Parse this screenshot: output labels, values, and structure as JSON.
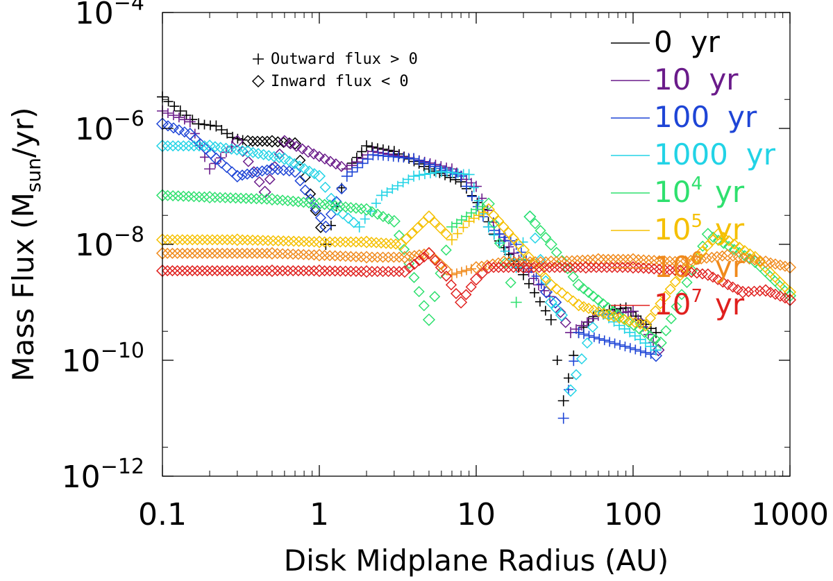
{
  "chart_data": {
    "type": "scatter",
    "xlabel": "Disk Midplane Radius (AU)",
    "ylabel": {
      "main": "Mass Flux (M",
      "sub": "sun",
      "tail": "/yr)"
    },
    "xscale": "log",
    "yscale": "log",
    "xlim": [
      0.1,
      1000
    ],
    "ylim": [
      1e-12,
      0.0001
    ],
    "x_ticks": [
      {
        "value": 0.1,
        "label": "0.1"
      },
      {
        "value": 1,
        "label": "1"
      },
      {
        "value": 10,
        "label": "10"
      },
      {
        "value": 100,
        "label": "100"
      },
      {
        "value": 1000,
        "label": "1000"
      }
    ],
    "y_ticks": [
      {
        "value": 1e-12,
        "base": "10",
        "exp": "−12"
      },
      {
        "value": 1e-10,
        "base": "10",
        "exp": "−10"
      },
      {
        "value": 1e-08,
        "base": "10",
        "exp": "−8"
      },
      {
        "value": 1e-06,
        "base": "10",
        "exp": "−6"
      },
      {
        "value": 0.0001,
        "base": "10",
        "exp": "−4"
      }
    ],
    "grid": false,
    "legend_position": "top-right",
    "marker_key": [
      {
        "marker": "plus",
        "text": "Outward flux > 0"
      },
      {
        "marker": "diamond",
        "text": "Inward flux < 0"
      }
    ],
    "series": [
      {
        "name": "0 yr",
        "label": {
          "base": "0",
          "exp": "",
          "unit": "yr"
        },
        "color": "#000000",
        "points": [
          [
            0.1,
            3.5e-06,
            "p"
          ],
          [
            0.13,
            2e-06,
            "p"
          ],
          [
            0.17,
            1.2e-06,
            "p"
          ],
          [
            0.22,
            1.1e-06,
            "p"
          ],
          [
            0.28,
            7e-07,
            "p"
          ],
          [
            0.35,
            6e-07,
            "d"
          ],
          [
            0.5,
            6e-07,
            "d"
          ],
          [
            0.7,
            5.5e-07,
            "d"
          ],
          [
            1.1,
            1e-08,
            "p"
          ],
          [
            1.5,
            2e-07,
            "p"
          ],
          [
            2,
            5e-07,
            "p"
          ],
          [
            3,
            4e-07,
            "p"
          ],
          [
            5,
            2e-07,
            "p"
          ],
          [
            8,
            1.2e-07,
            "p"
          ],
          [
            11,
            4e-08,
            "p"
          ],
          [
            13,
            1.5e-08,
            "p"
          ],
          [
            20,
            3e-09,
            "p"
          ],
          [
            30,
            5e-10,
            "p"
          ],
          [
            36,
            2e-11,
            "p"
          ],
          [
            45,
            3e-10,
            "p"
          ],
          [
            60,
            7e-10,
            "p"
          ],
          [
            90,
            8e-10,
            "p"
          ],
          [
            140,
            3e-10,
            "p"
          ]
        ]
      },
      {
        "name": "10 yr",
        "label": {
          "base": "10",
          "exp": "",
          "unit": "yr"
        },
        "color": "#6a1b8a",
        "points": [
          [
            0.1,
            2e-06,
            "p"
          ],
          [
            0.15,
            1.3e-06,
            "p"
          ],
          [
            0.2,
            2e-07,
            "p"
          ],
          [
            0.3,
            6e-07,
            "d"
          ],
          [
            0.45,
            8e-08,
            "d"
          ],
          [
            0.6,
            6e-07,
            "d"
          ],
          [
            0.85,
            4e-07,
            "d"
          ],
          [
            1.5,
            2e-07,
            "p"
          ],
          [
            2.2,
            4e-07,
            "p"
          ],
          [
            4,
            3e-07,
            "p"
          ],
          [
            7,
            2e-07,
            "p"
          ],
          [
            10,
            1e-07,
            "p"
          ],
          [
            14,
            1.5e-08,
            "p"
          ],
          [
            25,
            2e-09,
            "p"
          ],
          [
            32,
            1e-09,
            "d"
          ],
          [
            40,
            3e-10,
            "p"
          ],
          [
            60,
            6e-10,
            "p"
          ],
          [
            100,
            7e-10,
            "p"
          ],
          [
            145,
            1.5e-10,
            "d"
          ]
        ]
      },
      {
        "name": "100 yr",
        "label": {
          "base": "100",
          "exp": "",
          "unit": "yr"
        },
        "color": "#1e45d6",
        "points": [
          [
            0.1,
            1.2e-06,
            "d"
          ],
          [
            0.15,
            8e-07,
            "d"
          ],
          [
            0.22,
            3e-07,
            "d"
          ],
          [
            0.3,
            1.5e-07,
            "d"
          ],
          [
            0.5,
            2e-07,
            "d"
          ],
          [
            0.7,
            1.8e-07,
            "d"
          ],
          [
            1.1,
            2e-08,
            "d"
          ],
          [
            1.5,
            1.5e-07,
            "p"
          ],
          [
            2.2,
            3.5e-07,
            "p"
          ],
          [
            4,
            3e-07,
            "p"
          ],
          [
            8,
            1.5e-07,
            "p"
          ],
          [
            12,
            2e-08,
            "p"
          ],
          [
            18,
            1e-08,
            "p"
          ],
          [
            28,
            1.5e-09,
            "d"
          ],
          [
            32,
            1e-09,
            "d"
          ],
          [
            36,
            1e-11,
            "p"
          ],
          [
            45,
            3e-10,
            "p"
          ],
          [
            140,
            1.2e-10,
            "d"
          ]
        ]
      },
      {
        "name": "1000 yr",
        "label": {
          "base": "1000",
          "exp": "",
          "unit": "yr"
        },
        "color": "#22d3e6",
        "points": [
          [
            0.1,
            5e-07,
            "d"
          ],
          [
            0.2,
            5e-07,
            "d"
          ],
          [
            0.35,
            4e-07,
            "d"
          ],
          [
            0.6,
            3e-07,
            "d"
          ],
          [
            1,
            1.5e-07,
            "d"
          ],
          [
            1.3,
            4e-08,
            "d"
          ],
          [
            1.8,
            2e-08,
            "p"
          ],
          [
            2.5,
            7e-08,
            "p"
          ],
          [
            4,
            1.5e-07,
            "p"
          ],
          [
            6,
            1.8e-07,
            "p"
          ],
          [
            9,
            1.6e-07,
            "p"
          ],
          [
            12,
            2e-08,
            "p"
          ],
          [
            18,
            4e-09,
            "p"
          ],
          [
            22,
            3e-08,
            "d"
          ],
          [
            30,
            1e-09,
            "d"
          ],
          [
            35,
            6e-10,
            "d"
          ],
          [
            40,
            3e-11,
            "d"
          ],
          [
            60,
            7e-10,
            "p"
          ],
          [
            140,
            1.5e-10,
            "p"
          ]
        ]
      },
      {
        "name": "10⁴ yr",
        "label": {
          "base": "10",
          "exp": "4",
          "unit": "yr"
        },
        "color": "#2ee06e",
        "points": [
          [
            0.1,
            7e-08,
            "d"
          ],
          [
            0.2,
            6.5e-08,
            "d"
          ],
          [
            0.5,
            6e-08,
            "d"
          ],
          [
            1,
            5e-08,
            "d"
          ],
          [
            2,
            4e-08,
            "d"
          ],
          [
            3,
            2.5e-08,
            "d"
          ],
          [
            5,
            5e-10,
            "d"
          ],
          [
            7,
            2e-08,
            "p"
          ],
          [
            10,
            4e-08,
            "p"
          ],
          [
            12,
            5e-08,
            "d"
          ],
          [
            18,
            1e-09,
            "p"
          ],
          [
            22,
            3e-08,
            "d"
          ],
          [
            30,
            1e-08,
            "d"
          ],
          [
            45,
            2e-09,
            "d"
          ],
          [
            80,
            6e-10,
            "d"
          ],
          [
            150,
            2e-10,
            "d"
          ],
          [
            300,
            1.5e-08,
            "d"
          ],
          [
            600,
            5e-09,
            "d"
          ],
          [
            1000,
            1.3e-09,
            "d"
          ]
        ]
      },
      {
        "name": "10⁵ yr",
        "label": {
          "base": "10",
          "exp": "5",
          "unit": "yr"
        },
        "color": "#f5c000",
        "points": [
          [
            0.1,
            1.2e-08,
            "d"
          ],
          [
            0.3,
            1.2e-08,
            "d"
          ],
          [
            1,
            1.1e-08,
            "d"
          ],
          [
            2,
            1.1e-08,
            "d"
          ],
          [
            3.3,
            1e-08,
            "d"
          ],
          [
            5,
            3e-08,
            "d"
          ],
          [
            7,
            1.2e-08,
            "p"
          ],
          [
            9,
            2.5e-08,
            "p"
          ],
          [
            12,
            4e-08,
            "d"
          ],
          [
            20,
            8e-09,
            "d"
          ],
          [
            30,
            2e-09,
            "d"
          ],
          [
            45,
            9e-10,
            "d"
          ],
          [
            70,
            6e-10,
            "d"
          ],
          [
            120,
            4e-10,
            "d"
          ],
          [
            200,
            3e-09,
            "d"
          ],
          [
            350,
            1.5e-08,
            "d"
          ],
          [
            600,
            6e-09,
            "d"
          ],
          [
            1000,
            1.5e-09,
            "d"
          ]
        ]
      },
      {
        "name": "10⁶ yr",
        "label": {
          "base": "10",
          "exp": "6",
          "unit": "yr"
        },
        "color": "#f08a1c",
        "points": [
          [
            0.1,
            7e-09,
            "d"
          ],
          [
            0.5,
            7e-09,
            "d"
          ],
          [
            1,
            6.5e-09,
            "d"
          ],
          [
            2,
            6e-09,
            "d"
          ],
          [
            3.5,
            6e-09,
            "d"
          ],
          [
            5,
            7e-09,
            "d"
          ],
          [
            7,
            3e-09,
            "p"
          ],
          [
            10,
            4e-09,
            "d"
          ],
          [
            15,
            5e-09,
            "d"
          ],
          [
            30,
            5e-09,
            "d"
          ],
          [
            60,
            5.5e-09,
            "d"
          ],
          [
            100,
            5.5e-09,
            "d"
          ],
          [
            200,
            5e-09,
            "d"
          ],
          [
            400,
            6.5e-09,
            "d"
          ],
          [
            700,
            5e-09,
            "d"
          ],
          [
            1000,
            4e-09,
            "d"
          ]
        ]
      },
      {
        "name": "10⁷ yr",
        "label": {
          "base": "10",
          "exp": "7",
          "unit": "yr"
        },
        "color": "#e0201e",
        "points": [
          [
            0.1,
            3.5e-09,
            "d"
          ],
          [
            0.5,
            3.5e-09,
            "d"
          ],
          [
            1,
            3.5e-09,
            "d"
          ],
          [
            2,
            3.4e-09,
            "d"
          ],
          [
            3.5,
            3.4e-09,
            "d"
          ],
          [
            5,
            7e-09,
            "d"
          ],
          [
            6,
            4e-09,
            "d"
          ],
          [
            8,
            1e-09,
            "d"
          ],
          [
            10,
            2.5e-09,
            "d"
          ],
          [
            12,
            4e-09,
            "d"
          ],
          [
            20,
            4e-09,
            "d"
          ],
          [
            50,
            4e-09,
            "d"
          ],
          [
            100,
            4e-09,
            "d"
          ],
          [
            200,
            3.5e-09,
            "d"
          ],
          [
            300,
            3e-09,
            "d"
          ],
          [
            500,
            1.5e-09,
            "d"
          ],
          [
            700,
            1.6e-09,
            "d"
          ],
          [
            1000,
            1.1e-09,
            "d"
          ]
        ]
      }
    ]
  }
}
